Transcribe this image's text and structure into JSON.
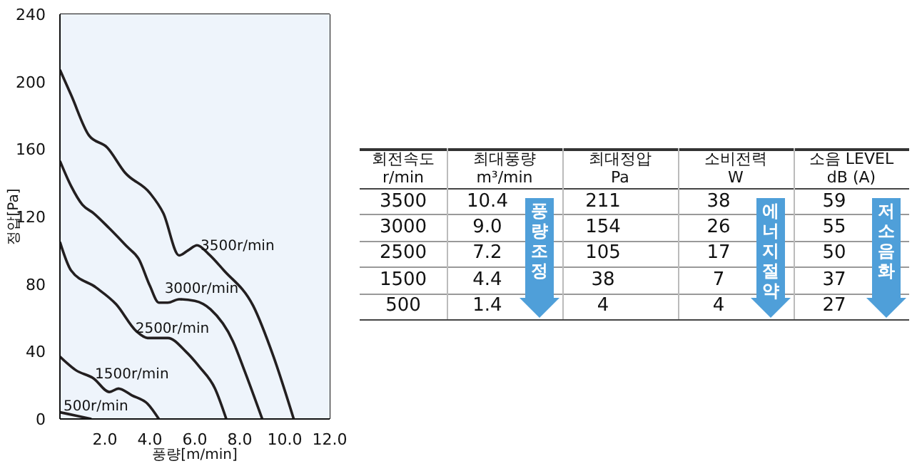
{
  "chart_data": [
    {
      "type": "line",
      "xlabel": "풍량[m/min]",
      "ylabel": "정압[Pa]",
      "xlim": [
        0,
        12
      ],
      "xticks": [
        {
          "value": 0,
          "label": null
        },
        {
          "value": 2,
          "label": "2.0"
        },
        {
          "value": 4,
          "label": "4.0"
        },
        {
          "value": 6,
          "label": "6.0"
        },
        {
          "value": 8,
          "label": "8.0"
        },
        {
          "value": 10,
          "label": "10.0"
        },
        {
          "value": 12,
          "label": "12.0"
        }
      ],
      "ylim": [
        0,
        240
      ],
      "yticks": [
        0,
        40,
        80,
        120,
        160,
        200,
        240
      ],
      "grid": true,
      "line_style": "solid",
      "marker": "none",
      "series": [
        {
          "name": "3500r/min",
          "color": "#231f20",
          "x": [
            0,
            0.5,
            1.3,
            2.1,
            2.9,
            4.0,
            4.6,
            5.3,
            5.7,
            6.1,
            6.6,
            7.3,
            8.6,
            9.5,
            10.4
          ],
          "values": [
            207,
            192,
            168,
            161,
            146,
            134,
            122,
            97,
            100,
            103,
            98,
            88,
            67,
            37,
            0
          ]
        },
        {
          "name": "3000r/min",
          "color": "#231f20",
          "x": [
            0,
            0.5,
            1.0,
            1.5,
            2.2,
            3.0,
            3.5,
            4.0,
            4.4,
            4.8,
            5.3,
            6.0,
            6.7,
            7.7,
            8.2,
            9.0
          ],
          "values": [
            153,
            138,
            127,
            122,
            113,
            102,
            95,
            79,
            69,
            69,
            71,
            70,
            65,
            46,
            29,
            0
          ]
        },
        {
          "name": "2500r/min",
          "color": "#231f20",
          "x": [
            0,
            0.5,
            1.6,
            2.5,
            3.4,
            3.9,
            4.8,
            5.6,
            6.2,
            6.9,
            7.4
          ],
          "values": [
            105,
            88,
            78,
            68,
            52,
            48,
            48,
            40,
            31,
            18,
            0
          ]
        },
        {
          "name": "1500r/min",
          "color": "#231f20",
          "x": [
            0,
            0.7,
            1.5,
            2.2,
            2.6,
            3.2,
            3.9,
            4.4
          ],
          "values": [
            37,
            29,
            24,
            16,
            18,
            14,
            9,
            0
          ]
        },
        {
          "name": "500r/min",
          "color": "#231f20",
          "x": [
            0,
            0.7,
            1.4
          ],
          "values": [
            4,
            2,
            0
          ]
        }
      ]
    },
    {
      "type": "other",
      "annotations": [
        "회전속도\nr/min",
        "최대풍량\nm³/min",
        "최대정압\nPa",
        "소비전력\nW",
        "소음 LEVEL\ndB (A)",
        "3500",
        "10.4",
        "211",
        "38",
        "59",
        "3000",
        "9.0",
        "154",
        "26",
        "55",
        "2500",
        "7.2",
        "105",
        "17",
        "50",
        "1500",
        "4.4",
        "38",
        "7",
        "37",
        "500",
        "1.4",
        "4",
        "4",
        "27",
        "풍량조정",
        "에너지절약",
        "저소음화"
      ]
    }
  ]
}
